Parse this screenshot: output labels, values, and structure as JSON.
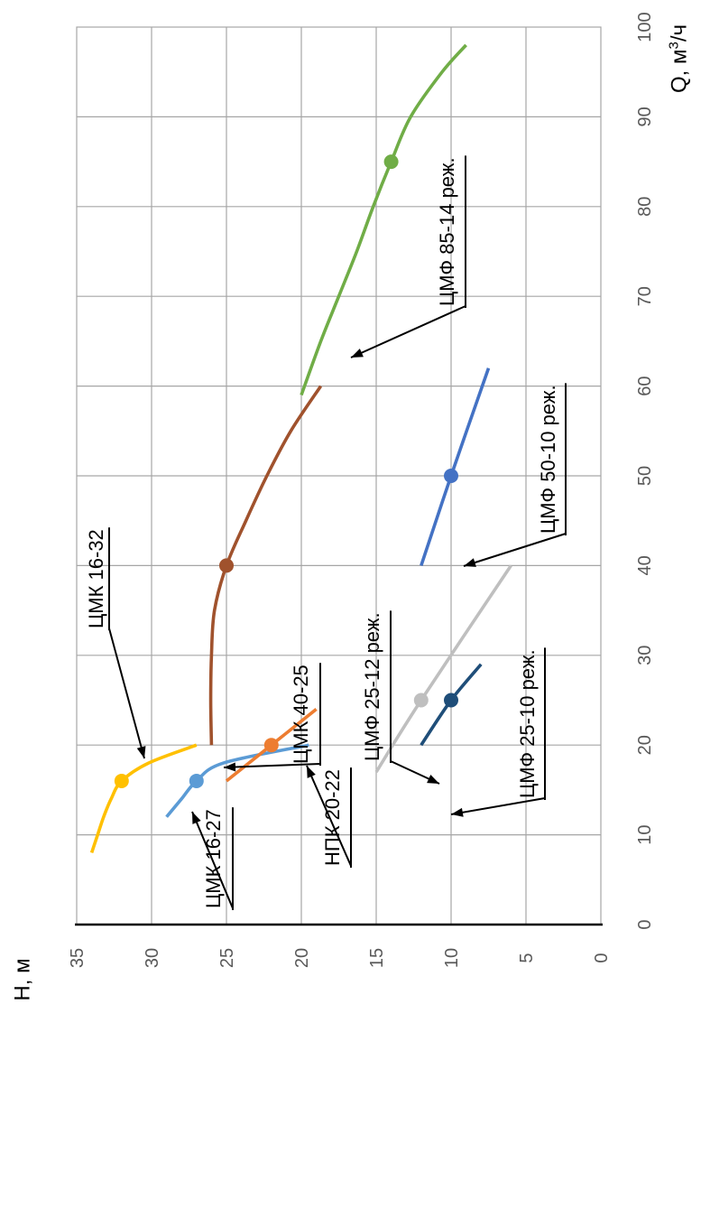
{
  "chart_data": {
    "type": "line",
    "x_axis": {
      "label_prefix": "Q, м",
      "label_sup": "3",
      "label_suffix": "/ч",
      "min": 0,
      "max": 100,
      "ticks": [
        "0",
        "10",
        "20",
        "30",
        "40",
        "50",
        "60",
        "70",
        "80",
        "90",
        "100"
      ]
    },
    "y_axis": {
      "label": "H, м",
      "min": 0,
      "max": 35,
      "ticks": [
        "0",
        "5",
        "10",
        "15",
        "20",
        "25",
        "30",
        "35"
      ]
    },
    "grid": true,
    "series": [
      {
        "name": "ЦМК 16-32",
        "color": "#FFC000",
        "points": [
          [
            8,
            34
          ],
          [
            10,
            33.6
          ],
          [
            12,
            33.2
          ],
          [
            14,
            32.7
          ],
          [
            16,
            32
          ],
          [
            18,
            30.2
          ],
          [
            20,
            27
          ]
        ],
        "marker": [
          16,
          32
        ]
      },
      {
        "name": "ЦМК 16-27",
        "color": "#5B9BD5",
        "points": [
          [
            12,
            29
          ],
          [
            14,
            28
          ],
          [
            16,
            27
          ],
          [
            18,
            25.2
          ],
          [
            20,
            19.5
          ]
        ],
        "marker": [
          16,
          27
        ]
      },
      {
        "name": "НПК 20-22",
        "color": "#ED7D31",
        "points": [
          [
            16,
            25
          ],
          [
            20,
            22
          ],
          [
            24,
            19
          ]
        ],
        "marker": [
          20,
          22
        ]
      },
      {
        "name": "ЦМК 40-25",
        "color": "#A0522D",
        "points": [
          [
            20,
            26
          ],
          [
            25,
            26.05
          ],
          [
            30,
            26
          ],
          [
            35,
            25.8
          ],
          [
            40,
            25
          ],
          [
            45,
            23.7
          ],
          [
            50,
            22.3
          ],
          [
            55,
            20.7
          ],
          [
            60,
            18.7
          ]
        ],
        "marker": [
          40,
          25
        ]
      },
      {
        "name": "ЦМФ 25-12 реж.",
        "color": "#BFBFBF",
        "points": [
          [
            17,
            15
          ],
          [
            25,
            12
          ],
          [
            40,
            6
          ]
        ],
        "marker": [
          25,
          12
        ]
      },
      {
        "name": "ЦМФ 25-10 реж.",
        "color": "#1F4E79",
        "points": [
          [
            20,
            12
          ],
          [
            25,
            10
          ],
          [
            29,
            8
          ]
        ],
        "marker": [
          25,
          10
        ]
      },
      {
        "name": "ЦМФ 50-10 реж.",
        "color": "#4472C4",
        "points": [
          [
            40,
            12
          ],
          [
            50,
            10
          ],
          [
            62,
            7.5
          ]
        ],
        "marker": [
          50,
          10
        ]
      },
      {
        "name": "ЦМФ 85-14 реж.",
        "color": "#70AD47",
        "points": [
          [
            59,
            20
          ],
          [
            65,
            18.7
          ],
          [
            70,
            17.5
          ],
          [
            75,
            16.3
          ],
          [
            80,
            15.2
          ],
          [
            85,
            14
          ],
          [
            90,
            12.7
          ],
          [
            95,
            10.6
          ],
          [
            98,
            9
          ]
        ],
        "marker": [
          85,
          14
        ]
      }
    ],
    "annotations": [
      {
        "text": "ЦМК 16-32",
        "series": "ЦМК 16-32",
        "x": 18.5,
        "y": 30.3
      },
      {
        "text": "ЦМК 16-27",
        "series": "ЦМК 16-27",
        "x": 16,
        "y": 27.2
      },
      {
        "text": "НПК 20-22",
        "series": "НПК 20-22",
        "x": 20.5,
        "y": 21.2
      },
      {
        "text": "ЦМК 40-25",
        "series": "ЦМК 40-25",
        "x": 32,
        "y": 25.9
      },
      {
        "text": "ЦМФ 25-12 реж.",
        "series": "ЦМФ 25-12 реж.",
        "x": 29.5,
        "y": 10.9
      },
      {
        "text": "ЦМФ 25-10 реж.",
        "series": "ЦМФ 25-10 реж.",
        "x": 23,
        "y": 10.7
      },
      {
        "text": "ЦМФ 50-10 реж.",
        "series": "ЦМФ 50-10 реж.",
        "x": 51.5,
        "y": 9.6
      },
      {
        "text": "ЦМФ 85-14 реж.",
        "series": "ЦМФ 85-14 реж.",
        "x": 72,
        "y": 17
      }
    ]
  }
}
